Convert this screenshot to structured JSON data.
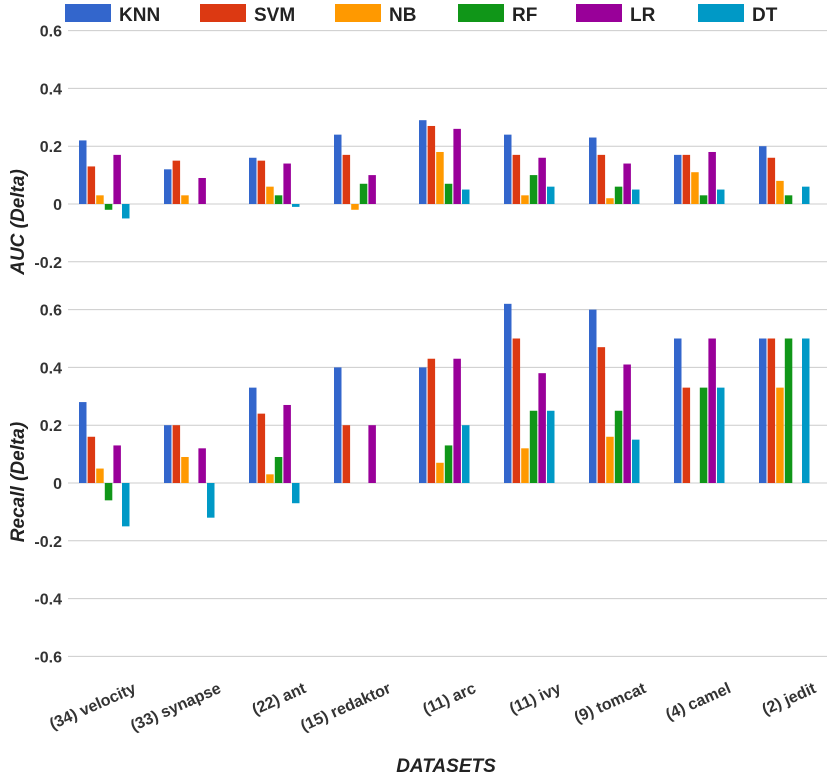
{
  "chart_data": {
    "type": "bar",
    "categories": [
      "(34) velocity",
      "(33) synapse",
      "(22) ant",
      "(15) redaktor",
      "(11) arc",
      "(11) ivy",
      "(9) tomcat",
      "(4) camel",
      "(2) jedit"
    ],
    "xlabel": "DATASETS",
    "legend": {
      "position": "top",
      "entries": [
        "KNN",
        "SVM",
        "NB",
        "RF",
        "LR",
        "DT"
      ]
    },
    "colors": {
      "KNN": "#3366cc",
      "SVM": "#dc3912",
      "NB": "#ff9900",
      "RF": "#109618",
      "LR": "#990099",
      "DT": "#0099c6"
    },
    "grid": true,
    "panels": [
      {
        "ylabel": "AUC (Delta)",
        "ylim": [
          -0.2,
          0.6
        ],
        "yticks": [
          "0.6",
          "0.4",
          "0.2",
          "0",
          "-0.2"
        ],
        "series": [
          {
            "name": "KNN",
            "values": [
              0.22,
              0.12,
              0.16,
              0.24,
              0.29,
              0.24,
              0.23,
              0.17,
              0.2
            ]
          },
          {
            "name": "SVM",
            "values": [
              0.13,
              0.15,
              0.15,
              0.17,
              0.27,
              0.17,
              0.17,
              0.17,
              0.16
            ]
          },
          {
            "name": "NB",
            "values": [
              0.03,
              0.03,
              0.06,
              -0.02,
              0.18,
              0.03,
              0.02,
              0.11,
              0.08
            ]
          },
          {
            "name": "RF",
            "values": [
              -0.02,
              0.0,
              0.03,
              0.07,
              0.07,
              0.1,
              0.06,
              0.03,
              0.03
            ]
          },
          {
            "name": "LR",
            "values": [
              0.17,
              0.09,
              0.14,
              0.1,
              0.26,
              0.16,
              0.14,
              0.18,
              0.0
            ]
          },
          {
            "name": "DT",
            "values": [
              -0.05,
              0.0,
              -0.01,
              0.0,
              0.05,
              0.06,
              0.05,
              0.05,
              0.06
            ]
          }
        ]
      },
      {
        "ylabel": "Recall (Delta)",
        "ylim": [
          -0.6,
          0.6
        ],
        "yticks": [
          "0.6",
          "0.4",
          "0.2",
          "0",
          "-0.2",
          "-0.4",
          "-0.6"
        ],
        "series": [
          {
            "name": "KNN",
            "values": [
              0.28,
              0.2,
              0.33,
              0.4,
              0.4,
              0.62,
              0.6,
              0.5,
              0.5
            ]
          },
          {
            "name": "SVM",
            "values": [
              0.16,
              0.2,
              0.24,
              0.2,
              0.43,
              0.5,
              0.47,
              0.33,
              0.5
            ]
          },
          {
            "name": "NB",
            "values": [
              0.05,
              0.09,
              0.03,
              0.0,
              0.07,
              0.12,
              0.16,
              0.0,
              0.33
            ]
          },
          {
            "name": "RF",
            "values": [
              -0.06,
              0.0,
              0.09,
              0.0,
              0.13,
              0.25,
              0.25,
              0.33,
              0.5
            ]
          },
          {
            "name": "LR",
            "values": [
              0.13,
              0.12,
              0.27,
              0.2,
              0.43,
              0.38,
              0.41,
              0.5,
              0.0
            ]
          },
          {
            "name": "DT",
            "values": [
              -0.15,
              -0.12,
              -0.07,
              0.0,
              0.2,
              0.25,
              0.15,
              0.33,
              0.5
            ]
          }
        ]
      }
    ]
  }
}
